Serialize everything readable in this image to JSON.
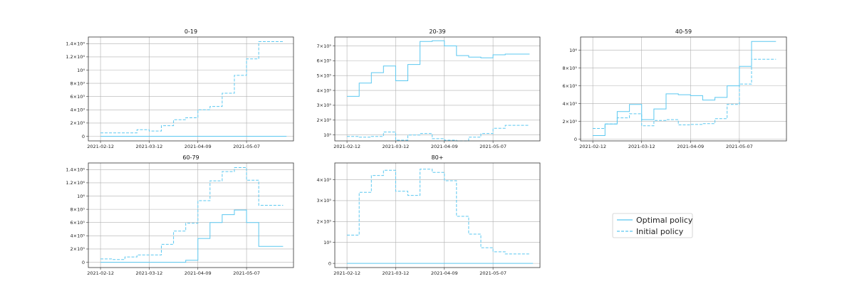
{
  "colors": {
    "series": "#5bc8f0",
    "grid": "#b0b0b0",
    "axis": "#333333"
  },
  "dates": [
    "2021-02-12",
    "2021-03-12",
    "2021-04-09",
    "2021-05-07"
  ],
  "legend": {
    "optimal": "Optimal policy",
    "initial": "Initial policy",
    "placement": "right-middle"
  },
  "chart_data": [
    {
      "type": "line",
      "title": "0-19",
      "grid": true,
      "ylim": [
        -700,
        15000
      ],
      "yticks": [
        0,
        2000,
        4000,
        6000,
        8000,
        10000,
        12000,
        14000
      ],
      "yticklabels": [
        "0",
        "2×10³",
        "4×10³",
        "6×10³",
        "8×10³",
        "10⁴",
        "1.2×10⁴",
        "1.4×10⁴"
      ],
      "series": [
        {
          "name": "Optimal policy",
          "style": "solid",
          "x": [
            "2021-02-12",
            "2021-05-30"
          ],
          "y": [
            0,
            0
          ]
        },
        {
          "name": "Initial policy",
          "style": "dashed",
          "x": [
            "2021-02-12",
            "2021-02-26",
            "2021-03-05",
            "2021-03-12",
            "2021-03-19",
            "2021-03-26",
            "2021-04-02",
            "2021-04-09",
            "2021-04-16",
            "2021-04-23",
            "2021-04-30",
            "2021-05-07",
            "2021-05-14",
            "2021-05-21",
            "2021-05-28"
          ],
          "y": [
            500,
            500,
            1000,
            800,
            1600,
            2500,
            2800,
            4000,
            4500,
            6500,
            9200,
            11700,
            14300,
            14300,
            14300
          ]
        }
      ]
    },
    {
      "type": "line",
      "title": "20-39",
      "grid": true,
      "ylim": [
        60000,
        760000
      ],
      "yticks": [
        100000,
        200000,
        300000,
        400000,
        500000,
        600000,
        700000
      ],
      "yticklabels": [
        "10⁵",
        "2×10⁵",
        "3×10⁵",
        "4×10⁵",
        "5×10⁵",
        "6×10⁵",
        "7×10⁵"
      ],
      "series": [
        {
          "name": "Optimal policy",
          "style": "solid",
          "x": [
            "2021-02-12",
            "2021-02-19",
            "2021-02-26",
            "2021-03-05",
            "2021-03-12",
            "2021-03-19",
            "2021-03-26",
            "2021-04-02",
            "2021-04-09",
            "2021-04-16",
            "2021-04-23",
            "2021-04-30",
            "2021-05-07",
            "2021-05-14",
            "2021-05-21",
            "2021-05-28"
          ],
          "y": [
            360000,
            450000,
            520000,
            565000,
            465000,
            575000,
            730000,
            735000,
            700000,
            635000,
            625000,
            620000,
            640000,
            645000,
            645000,
            645000
          ]
        },
        {
          "name": "Initial policy",
          "style": "dashed",
          "x": [
            "2021-02-12",
            "2021-02-19",
            "2021-02-26",
            "2021-03-05",
            "2021-03-12",
            "2021-03-19",
            "2021-03-26",
            "2021-04-02",
            "2021-04-09",
            "2021-04-16",
            "2021-04-23",
            "2021-04-30",
            "2021-05-07",
            "2021-05-14",
            "2021-05-21",
            "2021-05-28"
          ],
          "y": [
            90000,
            85000,
            90000,
            120000,
            65000,
            100000,
            110000,
            75000,
            65000,
            60000,
            85000,
            110000,
            145000,
            165000,
            165000,
            165000
          ]
        }
      ]
    },
    {
      "type": "line",
      "title": "40-59",
      "grid": true,
      "ylim": [
        -20000,
        1150000
      ],
      "yticks": [
        0,
        200000,
        400000,
        600000,
        800000,
        1000000
      ],
      "yticklabels": [
        "0",
        "2×10⁵",
        "4×10⁵",
        "6×10⁵",
        "8×10⁵",
        "10⁶"
      ],
      "series": [
        {
          "name": "Optimal policy",
          "style": "solid",
          "x": [
            "2021-02-12",
            "2021-02-19",
            "2021-02-26",
            "2021-03-05",
            "2021-03-12",
            "2021-03-19",
            "2021-03-26",
            "2021-04-02",
            "2021-04-09",
            "2021-04-16",
            "2021-04-23",
            "2021-04-30",
            "2021-05-07",
            "2021-05-14",
            "2021-05-21",
            "2021-05-28"
          ],
          "y": [
            40000,
            170000,
            310000,
            390000,
            220000,
            340000,
            510000,
            500000,
            490000,
            440000,
            470000,
            600000,
            820000,
            1100000,
            1100000,
            1100000
          ]
        },
        {
          "name": "Initial policy",
          "style": "dashed",
          "x": [
            "2021-02-12",
            "2021-02-19",
            "2021-02-26",
            "2021-03-05",
            "2021-03-12",
            "2021-03-19",
            "2021-03-26",
            "2021-04-02",
            "2021-04-09",
            "2021-04-16",
            "2021-04-23",
            "2021-04-30",
            "2021-05-07",
            "2021-05-14",
            "2021-05-21",
            "2021-05-28"
          ],
          "y": [
            120000,
            170000,
            240000,
            285000,
            150000,
            210000,
            220000,
            160000,
            165000,
            175000,
            230000,
            390000,
            620000,
            900000,
            900000,
            900000
          ]
        }
      ]
    },
    {
      "type": "line",
      "title": "60-79",
      "grid": true,
      "ylim": [
        -80000,
        1500000
      ],
      "yticks": [
        0,
        200000,
        400000,
        600000,
        800000,
        1000000,
        1200000,
        1400000
      ],
      "yticklabels": [
        "0",
        "2×10⁵",
        "4×10⁵",
        "6×10⁵",
        "8×10⁵",
        "10⁶",
        "1.2×10⁶",
        "1.4×10⁶"
      ],
      "series": [
        {
          "name": "Optimal policy",
          "style": "solid",
          "x": [
            "2021-02-12",
            "2021-02-19",
            "2021-02-26",
            "2021-03-05",
            "2021-03-12",
            "2021-03-19",
            "2021-03-26",
            "2021-04-02",
            "2021-04-09",
            "2021-04-16",
            "2021-04-23",
            "2021-04-30",
            "2021-05-07",
            "2021-05-14",
            "2021-05-21",
            "2021-05-28"
          ],
          "y": [
            0,
            0,
            0,
            0,
            0,
            0,
            0,
            30000,
            360000,
            600000,
            720000,
            790000,
            600000,
            240000,
            240000,
            240000
          ]
        },
        {
          "name": "Initial policy",
          "style": "dashed",
          "x": [
            "2021-02-12",
            "2021-02-19",
            "2021-02-26",
            "2021-03-05",
            "2021-03-12",
            "2021-03-19",
            "2021-03-26",
            "2021-04-02",
            "2021-04-09",
            "2021-04-16",
            "2021-04-23",
            "2021-04-30",
            "2021-05-07",
            "2021-05-14",
            "2021-05-21",
            "2021-05-28"
          ],
          "y": [
            50000,
            40000,
            80000,
            110000,
            110000,
            270000,
            470000,
            590000,
            930000,
            1230000,
            1370000,
            1430000,
            1240000,
            860000,
            860000,
            860000
          ]
        }
      ]
    },
    {
      "type": "line",
      "title": "80+",
      "grid": true,
      "ylim": [
        -20000,
        480000
      ],
      "yticks": [
        0,
        100000,
        200000,
        300000,
        400000
      ],
      "yticklabels": [
        "0",
        "10⁵",
        "2×10⁵",
        "3×10⁵",
        "4×10⁵"
      ],
      "series": [
        {
          "name": "Optimal policy",
          "style": "solid",
          "x": [
            "2021-02-12",
            "2021-05-30"
          ],
          "y": [
            0,
            0
          ]
        },
        {
          "name": "Initial policy",
          "style": "dashed",
          "x": [
            "2021-02-12",
            "2021-02-19",
            "2021-02-26",
            "2021-03-05",
            "2021-03-12",
            "2021-03-19",
            "2021-03-26",
            "2021-04-02",
            "2021-04-09",
            "2021-04-16",
            "2021-04-23",
            "2021-04-30",
            "2021-05-07",
            "2021-05-14",
            "2021-05-21",
            "2021-05-28"
          ],
          "y": [
            135000,
            340000,
            420000,
            445000,
            345000,
            325000,
            450000,
            435000,
            395000,
            225000,
            140000,
            75000,
            55000,
            45000,
            45000,
            45000
          ]
        }
      ]
    }
  ]
}
